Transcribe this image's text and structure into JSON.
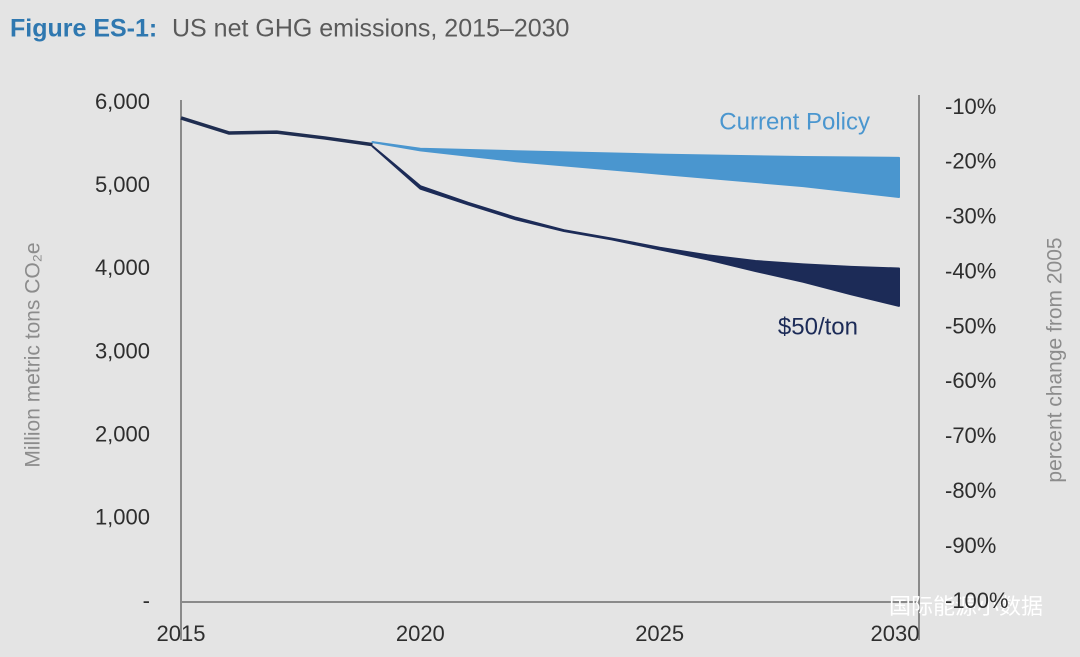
{
  "chart_data": {
    "type": "range",
    "title_prefix": "Figure ES-1:",
    "title": "US net GHG emissions, 2015–2030",
    "y_label": "Million metric tons CO₂e",
    "y2_label": "percent change from 2005",
    "watermark": "国际能源小数据",
    "xlim": [
      2015,
      2030
    ],
    "xticks": [
      2015,
      2020,
      2025,
      2030
    ],
    "ylim": [
      0,
      6000
    ],
    "yticks": [
      {
        "value": 0,
        "label": "-"
      },
      {
        "value": 1000,
        "label": "1,000"
      },
      {
        "value": 2000,
        "label": "2,000"
      },
      {
        "value": 3000,
        "label": "3,000"
      },
      {
        "value": 4000,
        "label": "4,000"
      },
      {
        "value": 5000,
        "label": "5,000"
      },
      {
        "value": 6000,
        "label": "6,000"
      }
    ],
    "y2lim": [
      -100,
      -9.1
    ],
    "y2ticks": [
      {
        "value": -10,
        "label": "-10%"
      },
      {
        "value": -20,
        "label": "-20%"
      },
      {
        "value": -30,
        "label": "-30%"
      },
      {
        "value": -40,
        "label": "-40%"
      },
      {
        "value": -50,
        "label": "-50%"
      },
      {
        "value": -60,
        "label": "-60%"
      },
      {
        "value": -70,
        "label": "-70%"
      },
      {
        "value": -80,
        "label": "-80%"
      },
      {
        "value": -90,
        "label": "-90%"
      },
      {
        "value": -100,
        "label": "-100%"
      }
    ],
    "series": [
      {
        "color": "#1f2d50",
        "x": [
          2015,
          2016,
          2017,
          2018,
          2019
        ],
        "values": [
          5820,
          5640,
          5650,
          5580,
          5500
        ]
      },
      {
        "name": "Current Policy",
        "color": "#4a96cf",
        "x": [
          2019,
          2020,
          2022,
          2025,
          2028,
          2030
        ],
        "high": [
          5530,
          5450,
          5420,
          5380,
          5350,
          5340
        ],
        "low": [
          5530,
          5430,
          5300,
          5150,
          5000,
          4870
        ]
      },
      {
        "name": "$50/ton",
        "color": "#1c2b57",
        "x": [
          2019,
          2020,
          2021,
          2022,
          2023,
          2024,
          2025,
          2026,
          2027,
          2028,
          2029,
          2030
        ],
        "high": [
          5480,
          5000,
          4800,
          4620,
          4470,
          4370,
          4260,
          4170,
          4100,
          4060,
          4030,
          4010
        ],
        "low": [
          5480,
          4970,
          4780,
          4600,
          4460,
          4360,
          4240,
          4120,
          3980,
          3850,
          3700,
          3560
        ]
      }
    ]
  }
}
